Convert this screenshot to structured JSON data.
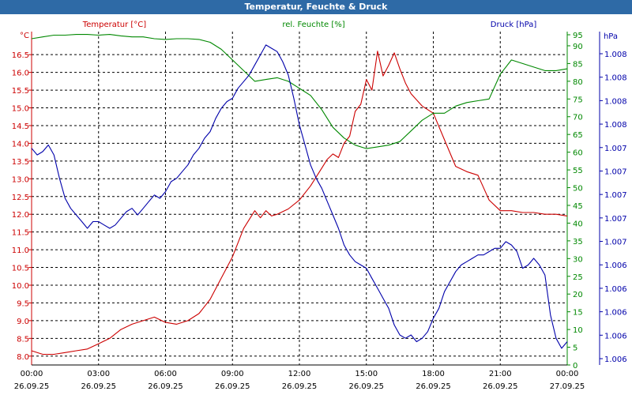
{
  "window": {
    "title": "Temperatur, Feuchte & Druck"
  },
  "chart_data": {
    "type": "line",
    "title": "Temperatur, Feuchte & Druck",
    "x_ticks": [
      {
        "time": "00:00",
        "date": "26.09.25"
      },
      {
        "time": "03:00",
        "date": "26.09.25"
      },
      {
        "time": "06:00",
        "date": "26.09.25"
      },
      {
        "time": "09:00",
        "date": "26.09.25"
      },
      {
        "time": "12:00",
        "date": "26.09.25"
      },
      {
        "time": "15:00",
        "date": "26.09.25"
      },
      {
        "time": "18:00",
        "date": "26.09.25"
      },
      {
        "time": "21:00",
        "date": "26.09.25"
      },
      {
        "time": "00:00",
        "date": "27.09.25"
      }
    ],
    "x_range_hours": [
      0,
      24
    ],
    "grid": true,
    "axes": {
      "temperature": {
        "label": "Temperatur [°C]",
        "unit": "°C",
        "color": "#cc0000",
        "side": "left",
        "range": [
          7.75,
          17.15
        ],
        "ticks": [
          "8.0",
          "8.5",
          "9.0",
          "9.5",
          "10.0",
          "10.5",
          "11.0",
          "11.5",
          "12.0",
          "12.5",
          "13.0",
          "13.5",
          "14.0",
          "14.5",
          "15.0",
          "15.5",
          "16.0",
          "16.5"
        ]
      },
      "humidity": {
        "label": "rel. Feuchte [%]",
        "unit": "%",
        "color": "#008800",
        "side": "right",
        "range": [
          0,
          94
        ],
        "ticks": [
          "0",
          "5",
          "10",
          "15",
          "20",
          "25",
          "30",
          "35",
          "40",
          "45",
          "50",
          "55",
          "60",
          "65",
          "70",
          "75",
          "80",
          "85",
          "90",
          "95"
        ]
      },
      "pressure": {
        "label": "Druck [hPa]",
        "unit": "hPa",
        "color": "#0000aa",
        "side": "right-outer",
        "range": [
          0,
          1
        ],
        "ticks": [
          "1.006",
          "1.006",
          "1.006",
          "1.006",
          "1.006",
          "1.007",
          "1.007",
          "1.007",
          "1.007",
          "1.007",
          "1.008",
          "1.008",
          "1.008",
          "1.008"
        ]
      }
    },
    "series": [
      {
        "name": "Temperatur [°C]",
        "axis": "temperature",
        "color": "#cc0000",
        "x": [
          0,
          0.5,
          1,
          1.5,
          2,
          2.5,
          3,
          3.5,
          4,
          4.5,
          5,
          5.5,
          6,
          6.5,
          7,
          7.5,
          8,
          8.5,
          9,
          9.5,
          10,
          10.25,
          10.5,
          10.75,
          11,
          11.5,
          12,
          12.5,
          13,
          13.25,
          13.5,
          13.75,
          14,
          14.25,
          14.5,
          14.75,
          15,
          15.25,
          15.5,
          15.75,
          16,
          16.25,
          16.5,
          16.75,
          17,
          17.5,
          18,
          18.5,
          19,
          19.5,
          20,
          20.5,
          21,
          21.5,
          22,
          22.5,
          23,
          23.5,
          24
        ],
        "y": [
          8.15,
          8.05,
          8.05,
          8.1,
          8.15,
          8.2,
          8.35,
          8.5,
          8.75,
          8.9,
          9.0,
          9.1,
          8.95,
          8.9,
          9.0,
          9.2,
          9.6,
          10.2,
          10.8,
          11.6,
          12.1,
          11.9,
          12.1,
          11.95,
          12.0,
          12.15,
          12.4,
          12.8,
          13.3,
          13.55,
          13.7,
          13.6,
          14.0,
          14.2,
          14.9,
          15.1,
          15.8,
          15.5,
          16.6,
          15.9,
          16.2,
          16.55,
          16.1,
          15.7,
          15.4,
          15.05,
          14.85,
          14.1,
          13.35,
          13.2,
          13.1,
          12.4,
          12.1,
          12.1,
          12.05,
          12.05,
          12.0,
          12.0,
          11.95
        ]
      },
      {
        "name": "rel. Feuchte [%]",
        "axis": "humidity",
        "color": "#008800",
        "x": [
          0,
          0.5,
          1,
          1.5,
          2,
          2.5,
          3,
          3.5,
          4,
          4.5,
          5,
          5.5,
          6,
          6.5,
          7,
          7.5,
          8,
          8.5,
          9,
          9.5,
          10,
          10.5,
          11,
          11.5,
          12,
          12.5,
          13,
          13.5,
          14,
          14.5,
          15,
          15.5,
          16,
          16.5,
          17,
          17.5,
          18,
          18.5,
          19,
          19.5,
          20,
          20.5,
          21,
          21.5,
          22,
          22.5,
          23,
          23.5,
          24
        ],
        "y": [
          92,
          92.5,
          93,
          93,
          93.2,
          93.2,
          93,
          93.2,
          92.8,
          92.5,
          92.5,
          92,
          91.8,
          92,
          92,
          91.8,
          91,
          89,
          86,
          83,
          80,
          80.5,
          81,
          80,
          78,
          76,
          72,
          67,
          64,
          62,
          61,
          61.5,
          62,
          63,
          66,
          69,
          71,
          71,
          73,
          74,
          74.5,
          75,
          82,
          86,
          85,
          84,
          83,
          83,
          83.5
        ]
      },
      {
        "name": "Druck [hPa]",
        "axis": "pressure",
        "color": "#0000aa",
        "x": [
          0,
          0.25,
          0.5,
          0.75,
          1,
          1.25,
          1.5,
          1.75,
          2,
          2.25,
          2.5,
          2.75,
          3,
          3.25,
          3.5,
          3.75,
          4,
          4.25,
          4.5,
          4.75,
          5,
          5.25,
          5.5,
          5.75,
          6,
          6.25,
          6.5,
          6.75,
          7,
          7.25,
          7.5,
          7.75,
          8,
          8.25,
          8.5,
          8.75,
          9,
          9.25,
          9.5,
          9.75,
          10,
          10.25,
          10.5,
          10.75,
          11,
          11.25,
          11.5,
          11.75,
          12,
          12.25,
          12.5,
          12.75,
          13,
          13.25,
          13.5,
          13.75,
          14,
          14.25,
          14.5,
          14.75,
          15,
          15.25,
          15.5,
          15.75,
          16,
          16.25,
          16.5,
          16.75,
          17,
          17.25,
          17.5,
          17.75,
          18,
          18.25,
          18.5,
          18.75,
          19,
          19.25,
          19.5,
          19.75,
          20,
          20.25,
          20.5,
          20.75,
          21,
          21.25,
          21.5,
          21.75,
          22,
          22.25,
          22.5,
          22.75,
          23,
          23.25,
          23.5,
          23.75,
          24
        ],
        "y": [
          0.65,
          0.63,
          0.64,
          0.66,
          0.63,
          0.56,
          0.5,
          0.47,
          0.45,
          0.43,
          0.41,
          0.43,
          0.43,
          0.42,
          0.41,
          0.42,
          0.44,
          0.46,
          0.47,
          0.45,
          0.47,
          0.49,
          0.51,
          0.5,
          0.52,
          0.55,
          0.56,
          0.58,
          0.6,
          0.63,
          0.65,
          0.68,
          0.7,
          0.74,
          0.77,
          0.79,
          0.8,
          0.83,
          0.85,
          0.87,
          0.9,
          0.93,
          0.96,
          0.95,
          0.94,
          0.91,
          0.87,
          0.8,
          0.72,
          0.66,
          0.6,
          0.56,
          0.53,
          0.49,
          0.45,
          0.41,
          0.36,
          0.33,
          0.31,
          0.3,
          0.29,
          0.26,
          0.23,
          0.2,
          0.17,
          0.12,
          0.09,
          0.08,
          0.09,
          0.07,
          0.08,
          0.1,
          0.14,
          0.17,
          0.22,
          0.25,
          0.28,
          0.3,
          0.31,
          0.32,
          0.33,
          0.33,
          0.34,
          0.35,
          0.35,
          0.37,
          0.36,
          0.34,
          0.29,
          0.3,
          0.32,
          0.3,
          0.27,
          0.15,
          0.08,
          0.05,
          0.07
        ]
      }
    ]
  }
}
